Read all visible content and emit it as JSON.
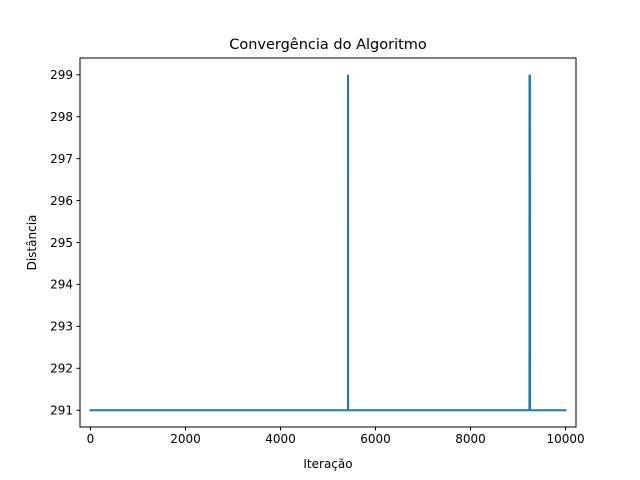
{
  "chart_data": {
    "type": "line",
    "title": "Convergência do Algoritmo",
    "xlabel": "Iteração",
    "ylabel": "Distância",
    "xlim": [
      -220,
      10220
    ],
    "ylim": [
      290.6,
      299.4
    ],
    "xticks": [
      0,
      2000,
      4000,
      6000,
      8000,
      10000
    ],
    "xtick_labels": [
      "0",
      "2000",
      "4000",
      "6000",
      "8000",
      "10000"
    ],
    "yticks": [
      291,
      292,
      293,
      294,
      295,
      296,
      297,
      298,
      299
    ],
    "ytick_labels": [
      "291",
      "292",
      "293",
      "294",
      "295",
      "296",
      "297",
      "298",
      "299"
    ],
    "grid": false,
    "legend": "none",
    "series": [
      {
        "color": "#1f77b4",
        "points": [
          [
            0,
            291
          ],
          [
            5420,
            291
          ],
          [
            5421,
            299
          ],
          [
            5422,
            291
          ],
          [
            9240,
            291
          ],
          [
            9241,
            299
          ],
          [
            9242,
            291
          ],
          [
            9250,
            291
          ],
          [
            9251,
            299
          ],
          [
            9252,
            291
          ],
          [
            10000,
            291
          ]
        ]
      }
    ]
  }
}
